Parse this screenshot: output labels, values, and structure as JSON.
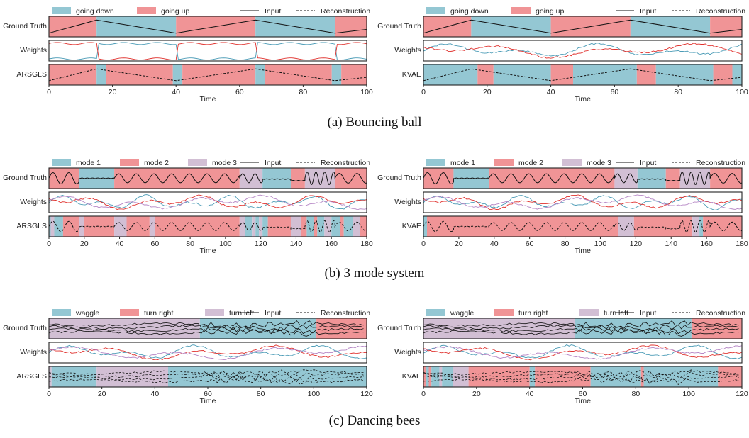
{
  "colors": {
    "blue": "#94c7d3",
    "red": "#f09496",
    "purple": "#d2bfd4",
    "weight_blue": "#4a9bb6",
    "weight_red": "#e0322e",
    "weight_purple": "#b484c4",
    "line": "#111111"
  },
  "common": {
    "row_labels": [
      "Ground Truth",
      "Weights"
    ],
    "line_legend": {
      "input": "Input",
      "reconstruction": "Reconstruction"
    },
    "xlabel": "Time"
  },
  "panels": [
    {
      "caption": "(a) Bouncing ball",
      "left_model": "ARSGLS",
      "right_model": "KVAE",
      "chart_data": {
        "type": "line",
        "title": "",
        "xlabel": "Time",
        "xlim": [
          0,
          100
        ],
        "xticks": [
          0,
          20,
          40,
          60,
          80,
          100
        ],
        "modes": [
          {
            "name": "going down",
            "color": "blue"
          },
          {
            "name": "going up",
            "color": "red"
          }
        ],
        "ground_truth": [
          [
            0,
            15,
            "red"
          ],
          [
            15,
            40,
            "blue"
          ],
          [
            40,
            65,
            "red"
          ],
          [
            65,
            90,
            "blue"
          ],
          [
            90,
            100,
            "red"
          ]
        ],
        "inferred": {
          "ARSGLS": [
            [
              0,
              15,
              "red"
            ],
            [
              15,
              18,
              "blue"
            ],
            [
              18,
              39,
              "red"
            ],
            [
              39,
              42,
              "blue"
            ],
            [
              42,
              65,
              "red"
            ],
            [
              65,
              68,
              "blue"
            ],
            [
              68,
              89,
              "red"
            ],
            [
              89,
              92,
              "blue"
            ],
            [
              92,
              100,
              "red"
            ]
          ],
          "KVAE": [
            [
              0,
              17,
              "blue"
            ],
            [
              17,
              22,
              "red"
            ],
            [
              22,
              40,
              "blue"
            ],
            [
              40,
              47,
              "red"
            ],
            [
              47,
              67,
              "blue"
            ],
            [
              67,
              73,
              "red"
            ],
            [
              73,
              91,
              "blue"
            ],
            [
              91,
              97,
              "red"
            ],
            [
              97,
              100,
              "blue"
            ]
          ]
        },
        "input_y_range": [
          -1,
          1
        ],
        "input": [
          [
            0,
            -0.8
          ],
          [
            15,
            0.8
          ],
          [
            40,
            -0.8
          ],
          [
            65,
            0.8
          ],
          [
            90,
            -0.8
          ],
          [
            100,
            -0.35
          ]
        ]
      }
    },
    {
      "caption": "(b) 3 mode system",
      "left_model": "ARSGLS",
      "right_model": "KVAE",
      "chart_data": {
        "type": "line",
        "title": "",
        "xlabel": "Time",
        "xlim": [
          0,
          180
        ],
        "xticks": [
          0,
          20,
          40,
          60,
          80,
          100,
          120,
          140,
          160,
          180
        ],
        "modes": [
          {
            "name": "mode 1",
            "color": "blue"
          },
          {
            "name": "mode 2",
            "color": "red"
          },
          {
            "name": "mode 3",
            "color": "purple"
          }
        ],
        "ground_truth": [
          [
            0,
            17,
            "red"
          ],
          [
            17,
            37,
            "blue"
          ],
          [
            37,
            108,
            "red"
          ],
          [
            108,
            121,
            "purple"
          ],
          [
            121,
            137,
            "blue"
          ],
          [
            137,
            145,
            "red"
          ],
          [
            145,
            162,
            "purple"
          ],
          [
            162,
            180,
            "red"
          ]
        ],
        "inferred": {
          "ARSGLS": [
            [
              0,
              1,
              "blue"
            ],
            [
              1,
              3,
              "purple"
            ],
            [
              3,
              8,
              "blue"
            ],
            [
              8,
              17,
              "red"
            ],
            [
              17,
              20,
              "purple"
            ],
            [
              20,
              37,
              "red"
            ],
            [
              37,
              44,
              "purple"
            ],
            [
              44,
              57,
              "red"
            ],
            [
              57,
              60,
              "purple"
            ],
            [
              60,
              108,
              "red"
            ],
            [
              108,
              111,
              "purple"
            ],
            [
              111,
              115,
              "blue"
            ],
            [
              115,
              117,
              "purple"
            ],
            [
              117,
              119,
              "blue"
            ],
            [
              119,
              121,
              "purple"
            ],
            [
              121,
              124,
              "blue"
            ],
            [
              124,
              137,
              "red"
            ],
            [
              137,
              143,
              "purple"
            ],
            [
              143,
              146,
              "red"
            ],
            [
              146,
              150,
              "blue"
            ],
            [
              150,
              152,
              "red"
            ],
            [
              152,
              156,
              "blue"
            ],
            [
              156,
              160,
              "purple"
            ],
            [
              160,
              165,
              "blue"
            ],
            [
              165,
              167,
              "red"
            ],
            [
              167,
              172,
              "blue"
            ],
            [
              172,
              176,
              "purple"
            ],
            [
              176,
              180,
              "red"
            ]
          ],
          "KVAE": [
            [
              0,
              2,
              "blue"
            ],
            [
              2,
              110,
              "red"
            ],
            [
              110,
              119,
              "purple"
            ],
            [
              119,
              152,
              "red"
            ],
            [
              152,
              156,
              "purple"
            ],
            [
              156,
              158,
              "blue"
            ],
            [
              158,
              180,
              "red"
            ]
          ]
        },
        "input_y_range": [
          -1,
          1
        ],
        "input_segments": [
          {
            "x0": 0,
            "x1": 17,
            "kind": "wave",
            "amp": 0.7,
            "period": 9
          },
          {
            "x0": 17,
            "x1": 37,
            "kind": "flat",
            "level": 0.0
          },
          {
            "x0": 37,
            "x1": 108,
            "kind": "wave",
            "amp": 0.55,
            "period": 10
          },
          {
            "x0": 108,
            "x1": 121,
            "kind": "wave",
            "amp": 0.55,
            "period": 7
          },
          {
            "x0": 121,
            "x1": 137,
            "kind": "flat",
            "level": -0.1
          },
          {
            "x0": 137,
            "x1": 145,
            "kind": "flat",
            "level": -0.3
          },
          {
            "x0": 145,
            "x1": 162,
            "kind": "wave",
            "amp": 0.8,
            "period": 5
          },
          {
            "x0": 162,
            "x1": 180,
            "kind": "wave",
            "amp": 0.6,
            "period": 10
          }
        ]
      }
    },
    {
      "caption": "(c) Dancing bees",
      "left_model": "ARSGLS",
      "right_model": "KVAE",
      "chart_data": {
        "type": "line",
        "title": "",
        "xlabel": "Time",
        "xlim": [
          0,
          120
        ],
        "xticks": [
          0,
          20,
          40,
          60,
          80,
          100,
          120
        ],
        "modes": [
          {
            "name": "waggle",
            "color": "blue"
          },
          {
            "name": "turn right",
            "color": "red"
          },
          {
            "name": "turn left",
            "color": "purple"
          }
        ],
        "ground_truth": [
          [
            0,
            57,
            "purple"
          ],
          [
            57,
            101,
            "blue"
          ],
          [
            101,
            120,
            "red"
          ]
        ],
        "inferred": {
          "ARSGLS": [
            [
              0,
              1,
              "purple"
            ],
            [
              1,
              18,
              "blue"
            ],
            [
              18,
              45,
              "purple"
            ],
            [
              45,
              120,
              "blue"
            ]
          ],
          "KVAE": [
            [
              0,
              1,
              "red"
            ],
            [
              1,
              2,
              "blue"
            ],
            [
              2,
              3,
              "red"
            ],
            [
              3,
              6,
              "blue"
            ],
            [
              6,
              7,
              "purple"
            ],
            [
              7,
              11,
              "blue"
            ],
            [
              11,
              17,
              "purple"
            ],
            [
              17,
              40,
              "red"
            ],
            [
              40,
              42,
              "blue"
            ],
            [
              42,
              63,
              "red"
            ],
            [
              63,
              82,
              "blue"
            ],
            [
              82,
              83,
              "red"
            ],
            [
              83,
              111,
              "blue"
            ],
            [
              111,
              120,
              "red"
            ]
          ]
        },
        "input_y_range": [
          -1,
          1
        ]
      }
    }
  ]
}
